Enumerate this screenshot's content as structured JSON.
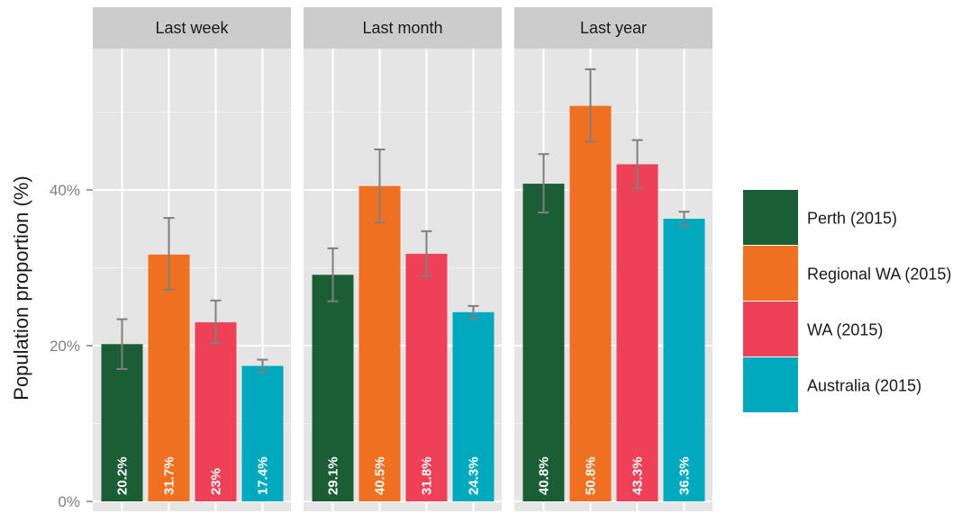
{
  "chart_data": {
    "type": "bar",
    "facets": [
      "Last week",
      "Last month",
      "Last year"
    ],
    "series": [
      {
        "name": "Perth (2015)",
        "color": "#1b5e36",
        "values": [
          20.2,
          29.1,
          40.8
        ],
        "labels": [
          "20.2%",
          "29.1%",
          "40.8%"
        ],
        "err_low": [
          17.0,
          25.7,
          37.1
        ],
        "err_high": [
          23.4,
          32.5,
          44.6
        ]
      },
      {
        "name": "Regional WA (2015)",
        "color": "#f07021",
        "values": [
          31.7,
          40.5,
          50.8
        ],
        "labels": [
          "31.7%",
          "40.5%",
          "50.8%"
        ],
        "err_low": [
          27.2,
          35.8,
          46.2
        ],
        "err_high": [
          36.4,
          45.2,
          55.5
        ]
      },
      {
        "name": "WA (2015)",
        "color": "#ee4057",
        "values": [
          23,
          31.8,
          43.3
        ],
        "labels": [
          "23%",
          "31.8%",
          "43.3%"
        ],
        "err_low": [
          20.3,
          28.9,
          40.2
        ],
        "err_high": [
          25.8,
          34.7,
          46.4
        ]
      },
      {
        "name": "Australia (2015)",
        "color": "#00a9bd",
        "values": [
          17.4,
          24.3,
          36.3
        ],
        "labels": [
          "17.4%",
          "24.3%",
          "36.3%"
        ],
        "err_low": [
          16.6,
          23.5,
          35.4
        ],
        "err_high": [
          18.2,
          25.1,
          37.2
        ]
      }
    ],
    "y_ticks": [
      0,
      20,
      40
    ],
    "y_tick_labels": [
      "0%",
      "20%",
      "40%"
    ],
    "ylim": [
      0,
      58
    ],
    "ylabel": "Population proportion (%)",
    "xlabel": "",
    "grid": true,
    "legend_position": "right",
    "colors": {
      "panel_bg": "#e5e5e5",
      "strip_bg": "#cccccc",
      "grid_major": "#ffffff",
      "grid_minor": "#f2f2f2",
      "error_bar": "#7f7f7f"
    }
  }
}
